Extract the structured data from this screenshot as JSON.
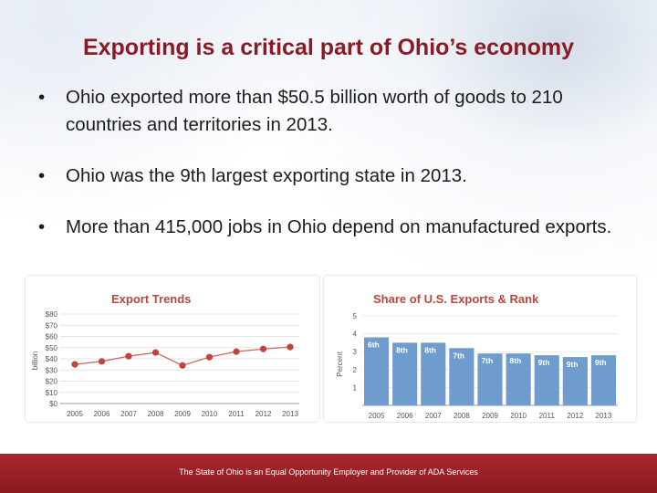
{
  "slide": {
    "title": "Exporting is a critical part of Ohio’s economy",
    "bullets": [
      "Ohio exported more than $50.5 billion worth of goods to 210 countries and territories in 2013.",
      "Ohio was the 9th largest exporting state in 2013.",
      "More than 415,000 jobs in Ohio depend on manufactured exports."
    ],
    "footer": "The State of Ohio is an Equal Opportunity Employer and Provider of ADA Services"
  },
  "colors": {
    "title": "#8d1a23",
    "footer_bg": "#9a2029",
    "chart_title": "#b8473d",
    "line_marker": "#c0453d",
    "bar": "#6e9cce",
    "axis_text": "#555555"
  },
  "chart_data": [
    {
      "type": "line",
      "title": "Export Trends",
      "ylabel": "billion",
      "xlabel": "",
      "x": [
        "2005",
        "2006",
        "2007",
        "2008",
        "2009",
        "2010",
        "2011",
        "2012",
        "2013"
      ],
      "values": [
        35,
        37.7,
        42.3,
        45.6,
        34,
        41.5,
        46.4,
        48.8,
        50.5
      ],
      "ylim": [
        0,
        80
      ],
      "yticks": [
        "$0",
        "$10",
        "$20",
        "$30",
        "$40",
        "$50",
        "$60",
        "$70",
        "$80"
      ],
      "grid": true
    },
    {
      "type": "bar",
      "title": "Share of U.S. Exports & Rank",
      "ylabel": "Percent",
      "xlabel": "",
      "categories": [
        "2005",
        "2006",
        "2007",
        "2008",
        "2009",
        "2010",
        "2011",
        "2012",
        "2013"
      ],
      "values": [
        3.8,
        3.5,
        3.5,
        3.2,
        2.9,
        2.9,
        2.8,
        2.7,
        2.8
      ],
      "ranks": [
        "6th",
        "8th",
        "8th",
        "7th",
        "7th",
        "8th",
        "9th",
        "9th",
        "9th"
      ],
      "ylim": [
        0,
        5
      ],
      "yticks": [
        "1",
        "2",
        "3",
        "4",
        "5"
      ],
      "grid": true
    }
  ]
}
